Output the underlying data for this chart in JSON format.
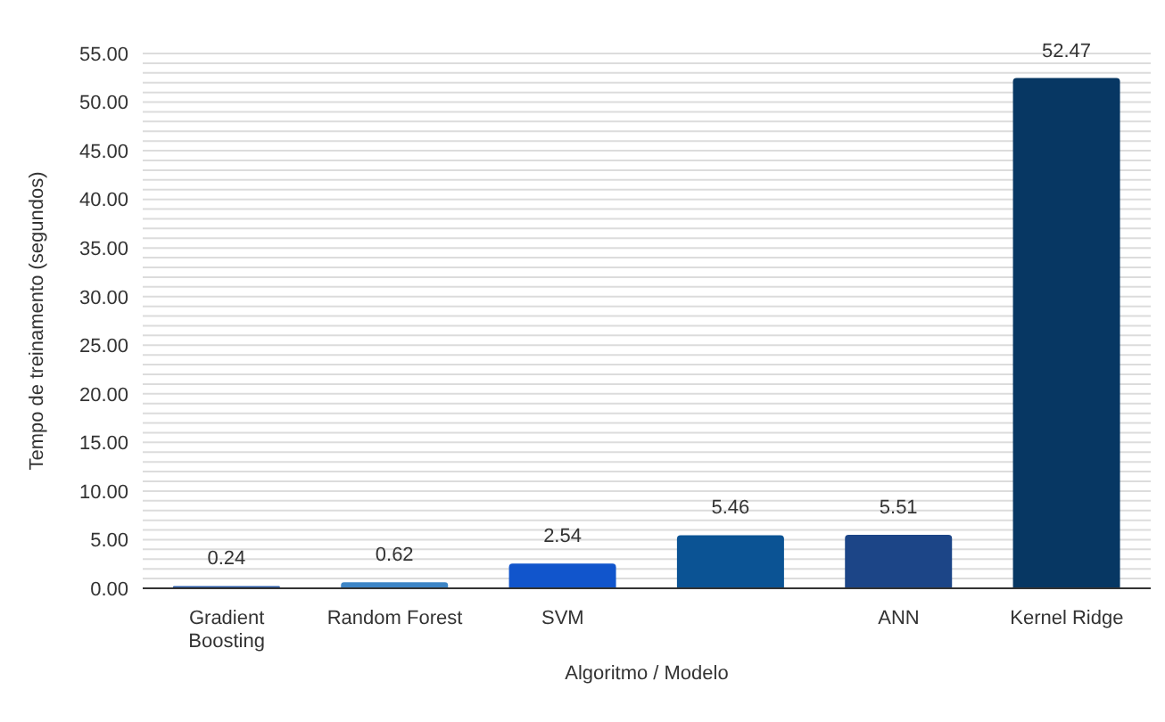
{
  "chart_data": {
    "type": "bar",
    "xlabel": "Algoritmo / Modelo",
    "ylabel": "Tempo de treinamento (segundos)",
    "categories": [
      "Gradient Boosting",
      "Random Forest",
      "SVM",
      null,
      "ANN",
      "Kernel Ridge"
    ],
    "values": [
      0.24,
      0.62,
      2.54,
      5.46,
      5.51,
      52.47
    ],
    "colors": [
      "#2a5ca8",
      "#3d85c6",
      "#1155cc",
      "#0b5394",
      "#1c4587",
      "#073763"
    ],
    "ylim": [
      0,
      55
    ],
    "yticks": [
      {
        "value": 0,
        "label": "0.00"
      },
      {
        "value": 1,
        "label": null
      },
      {
        "value": 2,
        "label": null
      },
      {
        "value": 3,
        "label": null
      },
      {
        "value": 4,
        "label": null
      },
      {
        "value": 5,
        "label": "5.00"
      },
      {
        "value": 6,
        "label": null
      },
      {
        "value": 7,
        "label": null
      },
      {
        "value": 8,
        "label": null
      },
      {
        "value": 9,
        "label": null
      },
      {
        "value": 10,
        "label": "10.00"
      },
      {
        "value": 11,
        "label": null
      },
      {
        "value": 12,
        "label": null
      },
      {
        "value": 13,
        "label": null
      },
      {
        "value": 14,
        "label": null
      },
      {
        "value": 15,
        "label": "15.00"
      },
      {
        "value": 16,
        "label": null
      },
      {
        "value": 17,
        "label": null
      },
      {
        "value": 18,
        "label": null
      },
      {
        "value": 19,
        "label": null
      },
      {
        "value": 20,
        "label": "20.00"
      },
      {
        "value": 21,
        "label": null
      },
      {
        "value": 22,
        "label": null
      },
      {
        "value": 23,
        "label": null
      },
      {
        "value": 24,
        "label": null
      },
      {
        "value": 25,
        "label": "25.00"
      },
      {
        "value": 26,
        "label": null
      },
      {
        "value": 27,
        "label": null
      },
      {
        "value": 28,
        "label": null
      },
      {
        "value": 29,
        "label": null
      },
      {
        "value": 30,
        "label": "30.00"
      },
      {
        "value": 31,
        "label": null
      },
      {
        "value": 32,
        "label": null
      },
      {
        "value": 33,
        "label": null
      },
      {
        "value": 34,
        "label": null
      },
      {
        "value": 35,
        "label": "35.00"
      },
      {
        "value": 36,
        "label": null
      },
      {
        "value": 37,
        "label": null
      },
      {
        "value": 38,
        "label": null
      },
      {
        "value": 39,
        "label": null
      },
      {
        "value": 40,
        "label": "40.00"
      },
      {
        "value": 41,
        "label": null
      },
      {
        "value": 42,
        "label": null
      },
      {
        "value": 43,
        "label": null
      },
      {
        "value": 44,
        "label": null
      },
      {
        "value": 45,
        "label": "45.00"
      },
      {
        "value": 46,
        "label": null
      },
      {
        "value": 47,
        "label": null
      },
      {
        "value": 48,
        "label": null
      },
      {
        "value": 49,
        "label": null
      },
      {
        "value": 50,
        "label": "50.00"
      },
      {
        "value": 51,
        "label": null
      },
      {
        "value": 52,
        "label": null
      },
      {
        "value": 53,
        "label": null
      },
      {
        "value": 54,
        "label": null
      },
      {
        "value": 55,
        "label": "55.00"
      }
    ],
    "grid": "y",
    "data_labels": true
  }
}
